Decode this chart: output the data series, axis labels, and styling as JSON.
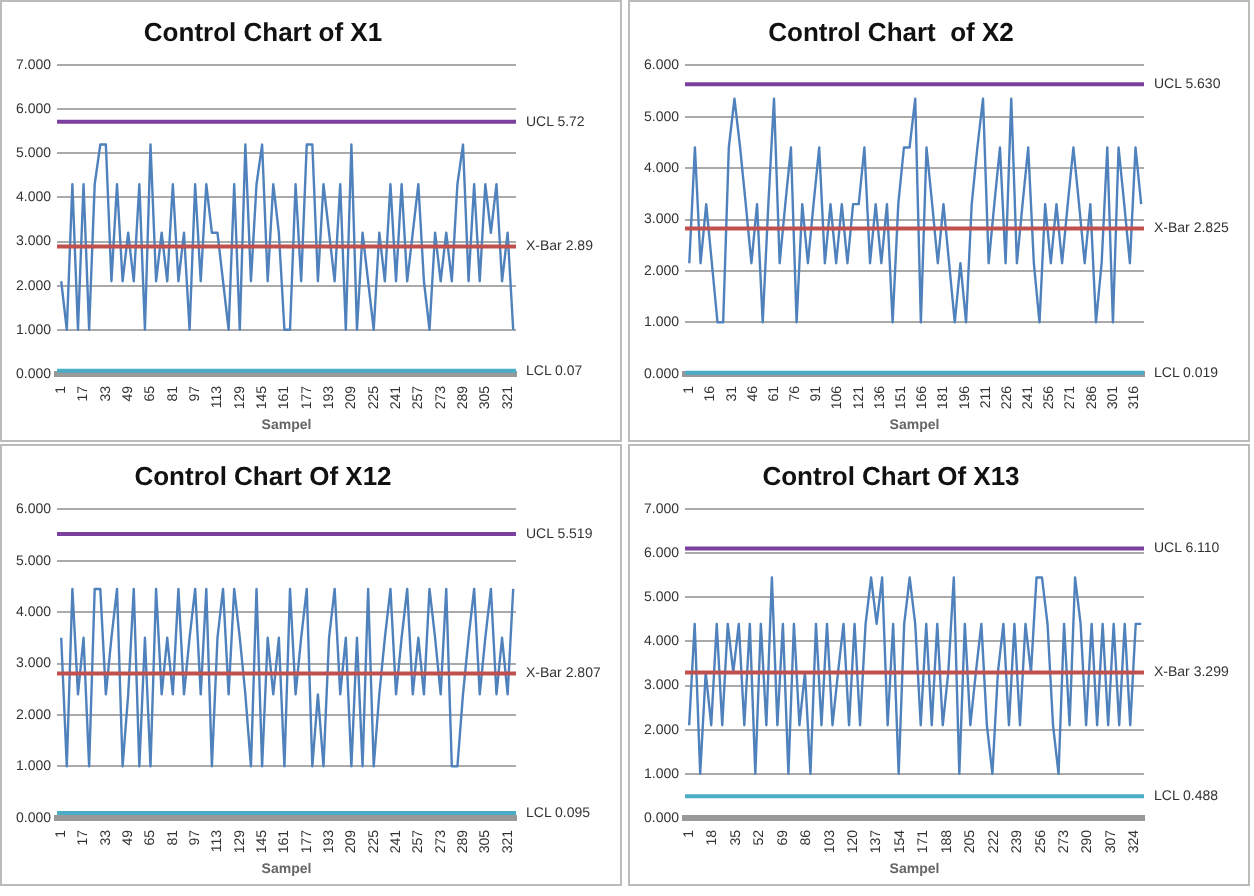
{
  "chart_data": [
    {
      "type": "line",
      "title": "Control Chart of X1",
      "xlabel": "Sampel",
      "grid": "y",
      "legend": false,
      "marker": "none",
      "xlim": [
        -2,
        327
      ],
      "xticks": [
        1,
        17,
        33,
        49,
        65,
        81,
        97,
        113,
        129,
        145,
        161,
        177,
        193,
        209,
        225,
        241,
        257,
        273,
        289,
        305,
        321
      ],
      "ylim": [
        0,
        7
      ],
      "yticks": [
        {
          "value": 0,
          "label": "0.000"
        },
        {
          "value": 1,
          "label": "1.000"
        },
        {
          "value": 2,
          "label": "2.000"
        },
        {
          "value": 3,
          "label": "3.000"
        },
        {
          "value": 4,
          "label": "4.000"
        },
        {
          "value": 5,
          "label": "5.000"
        },
        {
          "value": 6,
          "label": "6.000"
        },
        {
          "value": 7,
          "label": "7.000"
        }
      ],
      "x": [
        1,
        5,
        9,
        13,
        17,
        21,
        25,
        29,
        33,
        37,
        41,
        45,
        49,
        53,
        57,
        61,
        65,
        69,
        73,
        77,
        81,
        85,
        89,
        93,
        97,
        101,
        105,
        109,
        113,
        117,
        121,
        125,
        129,
        133,
        137,
        141,
        145,
        149,
        153,
        157,
        161,
        165,
        169,
        173,
        177,
        181,
        185,
        189,
        193,
        197,
        201,
        205,
        209,
        213,
        217,
        221,
        225,
        229,
        233,
        237,
        241,
        245,
        249,
        253,
        257,
        261,
        265,
        269,
        273,
        277,
        281,
        285,
        289,
        293,
        297,
        301,
        305,
        309,
        313,
        317,
        321,
        325
      ],
      "series": [
        {
          "color": "#4f81bd",
          "values": [
            2.1,
            1.0,
            4.3,
            1.0,
            4.3,
            1.0,
            4.3,
            5.2,
            5.2,
            2.1,
            4.3,
            2.1,
            3.2,
            2.1,
            4.3,
            1.0,
            5.2,
            2.1,
            3.2,
            2.1,
            4.3,
            2.1,
            3.2,
            1.0,
            4.3,
            2.1,
            4.3,
            3.2,
            3.2,
            2.1,
            1.0,
            4.3,
            1.0,
            5.2,
            2.1,
            4.3,
            5.2,
            2.1,
            4.3,
            3.2,
            1.0,
            1.0,
            4.3,
            2.1,
            5.2,
            5.2,
            2.1,
            4.3,
            3.2,
            2.1,
            4.3,
            1.0,
            5.2,
            1.0,
            3.2,
            2.1,
            1.0,
            3.2,
            2.1,
            4.3,
            2.1,
            4.3,
            2.1,
            3.2,
            4.3,
            2.1,
            1.0,
            3.2,
            2.1,
            3.2,
            2.1,
            4.3,
            5.2,
            2.1,
            4.3,
            2.1,
            4.3,
            3.2,
            4.3,
            2.1,
            3.2,
            1.0
          ]
        }
      ],
      "ref_lines": [
        {
          "axis": "y",
          "value": 5.72,
          "label": "UCL 5.72",
          "color": "#7b3f9e"
        },
        {
          "axis": "y",
          "value": 2.89,
          "label": "X-Bar 2.89",
          "color": "#c0504d"
        },
        {
          "axis": "y",
          "value": 0.07,
          "label": "LCL 0.07",
          "color": "#4bacc6"
        }
      ]
    },
    {
      "type": "line",
      "title": "Control Chart  of X2",
      "xlabel": "Sampel",
      "grid": "y",
      "legend": false,
      "marker": "none",
      "xlim": [
        -2,
        323
      ],
      "xticks": [
        1,
        16,
        31,
        46,
        61,
        76,
        91,
        106,
        121,
        136,
        151,
        166,
        181,
        196,
        211,
        226,
        241,
        256,
        271,
        286,
        301,
        316
      ],
      "ylim": [
        0,
        6
      ],
      "yticks": [
        {
          "value": 0,
          "label": "0.000"
        },
        {
          "value": 1,
          "label": "1.000"
        },
        {
          "value": 2,
          "label": "2.000"
        },
        {
          "value": 3,
          "label": "3.000"
        },
        {
          "value": 4,
          "label": "4.000"
        },
        {
          "value": 5,
          "label": "5.000"
        },
        {
          "value": 6,
          "label": "6.000"
        }
      ],
      "x": [
        1,
        5,
        9,
        13,
        17,
        21,
        25,
        29,
        33,
        37,
        41,
        45,
        49,
        53,
        57,
        61,
        65,
        69,
        73,
        77,
        81,
        85,
        89,
        93,
        97,
        101,
        105,
        109,
        113,
        117,
        121,
        125,
        129,
        133,
        137,
        141,
        145,
        149,
        153,
        157,
        161,
        165,
        169,
        173,
        177,
        181,
        185,
        189,
        193,
        197,
        201,
        205,
        209,
        213,
        217,
        221,
        225,
        229,
        233,
        237,
        241,
        245,
        249,
        253,
        257,
        261,
        265,
        269,
        273,
        277,
        281,
        285,
        289,
        293,
        297,
        301,
        305,
        309,
        313,
        317,
        321
      ],
      "series": [
        {
          "color": "#4f81bd",
          "values": [
            2.15,
            4.4,
            2.15,
            3.3,
            2.15,
            1.0,
            1.0,
            4.4,
            5.35,
            4.4,
            3.3,
            2.15,
            3.3,
            1.0,
            3.3,
            5.35,
            2.15,
            3.3,
            4.4,
            1.0,
            3.3,
            2.15,
            3.3,
            4.4,
            2.15,
            3.3,
            2.15,
            3.3,
            2.15,
            3.3,
            3.3,
            4.4,
            2.15,
            3.3,
            2.15,
            3.3,
            1.0,
            3.3,
            4.4,
            4.4,
            5.35,
            1.0,
            4.4,
            3.3,
            2.15,
            3.3,
            2.15,
            1.0,
            2.15,
            1.0,
            3.3,
            4.4,
            5.35,
            2.15,
            3.3,
            4.4,
            2.15,
            5.35,
            2.15,
            3.3,
            4.4,
            2.15,
            1.0,
            3.3,
            2.15,
            3.3,
            2.15,
            3.3,
            4.4,
            3.3,
            2.15,
            3.3,
            1.0,
            2.15,
            4.4,
            1.0,
            4.4,
            3.3,
            2.15,
            4.4,
            3.3
          ]
        }
      ],
      "ref_lines": [
        {
          "axis": "y",
          "value": 5.63,
          "label": "UCL 5.630",
          "color": "#7b3f9e"
        },
        {
          "axis": "y",
          "value": 2.825,
          "label": "X-Bar 2.825",
          "color": "#c0504d"
        },
        {
          "axis": "y",
          "value": 0.019,
          "label": "LCL 0.019",
          "color": "#4bacc6"
        }
      ]
    },
    {
      "type": "line",
      "title": "Control Chart Of X12",
      "xlabel": "Sampel",
      "grid": "y",
      "legend": false,
      "marker": "none",
      "xlim": [
        -2,
        327
      ],
      "xticks": [
        1,
        17,
        33,
        49,
        65,
        81,
        97,
        113,
        129,
        145,
        161,
        177,
        193,
        209,
        225,
        241,
        257,
        273,
        289,
        305,
        321
      ],
      "ylim": [
        0,
        6
      ],
      "yticks": [
        {
          "value": 0,
          "label": "0.000"
        },
        {
          "value": 1,
          "label": "1.000"
        },
        {
          "value": 2,
          "label": "2.000"
        },
        {
          "value": 3,
          "label": "3.000"
        },
        {
          "value": 4,
          "label": "4.000"
        },
        {
          "value": 5,
          "label": "5.000"
        },
        {
          "value": 6,
          "label": "6.000"
        }
      ],
      "x": [
        1,
        5,
        9,
        13,
        17,
        21,
        25,
        29,
        33,
        37,
        41,
        45,
        49,
        53,
        57,
        61,
        65,
        69,
        73,
        77,
        81,
        85,
        89,
        93,
        97,
        101,
        105,
        109,
        113,
        117,
        121,
        125,
        129,
        133,
        137,
        141,
        145,
        149,
        153,
        157,
        161,
        165,
        169,
        173,
        177,
        181,
        185,
        189,
        193,
        197,
        201,
        205,
        209,
        213,
        217,
        221,
        225,
        229,
        233,
        237,
        241,
        245,
        249,
        253,
        257,
        261,
        265,
        269,
        273,
        277,
        281,
        285,
        289,
        293,
        297,
        301,
        305,
        309,
        313,
        317,
        321,
        325
      ],
      "series": [
        {
          "color": "#4f81bd",
          "values": [
            3.5,
            1.0,
            4.45,
            2.4,
            3.5,
            1.0,
            4.45,
            4.45,
            2.4,
            3.5,
            4.45,
            1.0,
            2.4,
            4.45,
            1.0,
            3.5,
            1.0,
            4.45,
            2.4,
            3.5,
            2.4,
            4.45,
            2.4,
            3.5,
            4.45,
            2.4,
            4.45,
            1.0,
            3.5,
            4.45,
            2.4,
            4.45,
            3.5,
            2.4,
            1.0,
            4.45,
            1.0,
            3.5,
            2.4,
            3.5,
            1.0,
            4.45,
            2.4,
            3.5,
            4.45,
            1.0,
            2.4,
            1.0,
            3.5,
            4.45,
            2.4,
            3.5,
            1.0,
            3.5,
            1.0,
            4.45,
            1.0,
            2.4,
            3.5,
            4.45,
            2.4,
            3.5,
            4.45,
            2.4,
            3.5,
            2.4,
            4.45,
            3.5,
            2.4,
            4.45,
            1.0,
            1.0,
            2.4,
            3.5,
            4.45,
            2.4,
            3.5,
            4.45,
            2.4,
            3.5,
            2.4,
            4.45
          ]
        }
      ],
      "ref_lines": [
        {
          "axis": "y",
          "value": 5.519,
          "label": "UCL 5.519",
          "color": "#7b3f9e"
        },
        {
          "axis": "y",
          "value": 2.807,
          "label": "X-Bar 2.807",
          "color": "#c0504d"
        },
        {
          "axis": "y",
          "value": 0.095,
          "label": "LCL 0.095",
          "color": "#4bacc6"
        }
      ]
    },
    {
      "type": "line",
      "title": "Control Chart Of X13",
      "xlabel": "Sampel",
      "grid": "y",
      "legend": false,
      "marker": "none",
      "xlim": [
        -2,
        331
      ],
      "xticks": [
        1,
        18,
        35,
        52,
        69,
        86,
        103,
        120,
        137,
        154,
        171,
        188,
        205,
        222,
        239,
        256,
        273,
        290,
        307,
        324
      ],
      "ylim": [
        0,
        7
      ],
      "yticks": [
        {
          "value": 0,
          "label": "0.000"
        },
        {
          "value": 1,
          "label": "1.000"
        },
        {
          "value": 2,
          "label": "2.000"
        },
        {
          "value": 3,
          "label": "3.000"
        },
        {
          "value": 4,
          "label": "4.000"
        },
        {
          "value": 5,
          "label": "5.000"
        },
        {
          "value": 6,
          "label": "6.000"
        },
        {
          "value": 7,
          "label": "7.000"
        }
      ],
      "x": [
        1,
        5,
        9,
        13,
        17,
        21,
        25,
        29,
        33,
        37,
        41,
        45,
        49,
        53,
        57,
        61,
        65,
        69,
        73,
        77,
        81,
        85,
        89,
        93,
        97,
        101,
        105,
        109,
        113,
        117,
        121,
        125,
        129,
        133,
        137,
        141,
        145,
        149,
        153,
        157,
        161,
        165,
        169,
        173,
        177,
        181,
        185,
        189,
        193,
        197,
        201,
        205,
        209,
        213,
        217,
        221,
        225,
        229,
        233,
        237,
        241,
        245,
        249,
        253,
        257,
        261,
        265,
        269,
        273,
        277,
        281,
        285,
        289,
        293,
        297,
        301,
        305,
        309,
        313,
        317,
        321,
        325,
        329
      ],
      "series": [
        {
          "color": "#4f81bd",
          "values": [
            2.1,
            4.4,
            1.0,
            3.3,
            2.1,
            4.4,
            2.1,
            4.4,
            3.3,
            4.4,
            2.1,
            4.4,
            1.0,
            4.4,
            2.1,
            5.45,
            2.1,
            4.4,
            1.0,
            4.4,
            2.1,
            3.3,
            1.0,
            4.4,
            2.1,
            4.4,
            2.1,
            3.3,
            4.4,
            2.1,
            4.4,
            2.1,
            4.4,
            5.45,
            4.4,
            5.45,
            2.1,
            4.4,
            1.0,
            4.4,
            5.45,
            4.4,
            2.1,
            4.4,
            2.1,
            4.4,
            2.1,
            3.3,
            5.45,
            1.0,
            4.4,
            2.1,
            3.3,
            4.4,
            2.1,
            1.0,
            3.3,
            4.4,
            2.1,
            4.4,
            2.1,
            4.4,
            3.3,
            5.45,
            5.45,
            4.4,
            2.1,
            1.0,
            4.4,
            2.1,
            5.45,
            4.4,
            2.1,
            4.4,
            2.1,
            4.4,
            2.1,
            4.4,
            2.1,
            4.4,
            2.1,
            4.4,
            4.4
          ]
        }
      ],
      "ref_lines": [
        {
          "axis": "y",
          "value": 6.11,
          "label": "UCL 6.110",
          "color": "#7b3f9e"
        },
        {
          "axis": "y",
          "value": 3.299,
          "label": "X-Bar 3.299",
          "color": "#c0504d"
        },
        {
          "axis": "y",
          "value": 0.488,
          "label": "LCL 0.488",
          "color": "#4bacc6"
        }
      ]
    }
  ]
}
